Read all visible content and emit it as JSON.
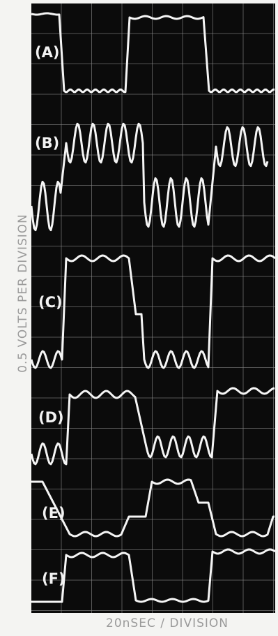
{
  "traces": [
    {
      "label": "(A)"
    },
    {
      "label": "(B)"
    },
    {
      "label": "(C)"
    },
    {
      "label": "(D)"
    },
    {
      "label": "(E)"
    },
    {
      "label": "(F)"
    }
  ],
  "y_axis_label": "0.5 VOLTS PER DIVISION",
  "x_axis_label": "20nSEC / DIVISION"
}
